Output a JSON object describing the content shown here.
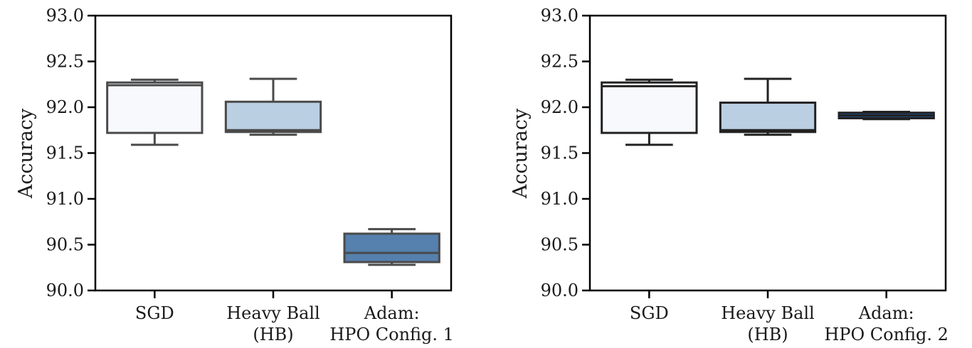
{
  "chart_data": [
    {
      "type": "box",
      "ylabel": "Accuracy",
      "ylim": [
        90.0,
        93.0
      ],
      "yticks": [
        "90.0",
        "90.5",
        "91.0",
        "91.5",
        "92.0",
        "92.5",
        "93.0"
      ],
      "categories": [
        [
          "SGD"
        ],
        [
          "Heavy Ball",
          "(HB)"
        ],
        [
          "Adam:",
          "HPO Config. 1"
        ]
      ],
      "boxes": [
        {
          "whisker_low": 91.59,
          "q1": 91.72,
          "median": 92.24,
          "q3": 92.27,
          "whisker_high": 92.3,
          "fill": "#f7f9fd"
        },
        {
          "whisker_low": 91.7,
          "q1": 91.73,
          "median": 91.75,
          "q3": 92.06,
          "whisker_high": 92.31,
          "fill": "#bacfe2"
        },
        {
          "whisker_low": 90.28,
          "q1": 90.31,
          "median": 90.41,
          "q3": 90.62,
          "whisker_high": 90.67,
          "fill": "#5680ad"
        }
      ],
      "box_edge_color": "#4a4a4a"
    },
    {
      "type": "box",
      "ylabel": "Accuracy",
      "ylim": [
        90.0,
        93.0
      ],
      "yticks": [
        "90.0",
        "90.5",
        "91.0",
        "91.5",
        "92.0",
        "92.5",
        "93.0"
      ],
      "categories": [
        [
          "SGD"
        ],
        [
          "Heavy Ball",
          "(HB)"
        ],
        [
          "Adam:",
          "HPO Config. 2"
        ]
      ],
      "boxes": [
        {
          "whisker_low": 91.59,
          "q1": 91.72,
          "median": 92.23,
          "q3": 92.27,
          "whisker_high": 92.3,
          "fill": "#f7f9fd"
        },
        {
          "whisker_low": 91.7,
          "q1": 91.73,
          "median": 91.75,
          "q3": 92.05,
          "whisker_high": 92.31,
          "fill": "#bacfe2"
        },
        {
          "whisker_low": 91.87,
          "q1": 91.88,
          "median": 91.91,
          "q3": 91.94,
          "whisker_high": 91.95,
          "fill": "#1c4f8a"
        }
      ],
      "box_edge_color": "#222222"
    }
  ]
}
